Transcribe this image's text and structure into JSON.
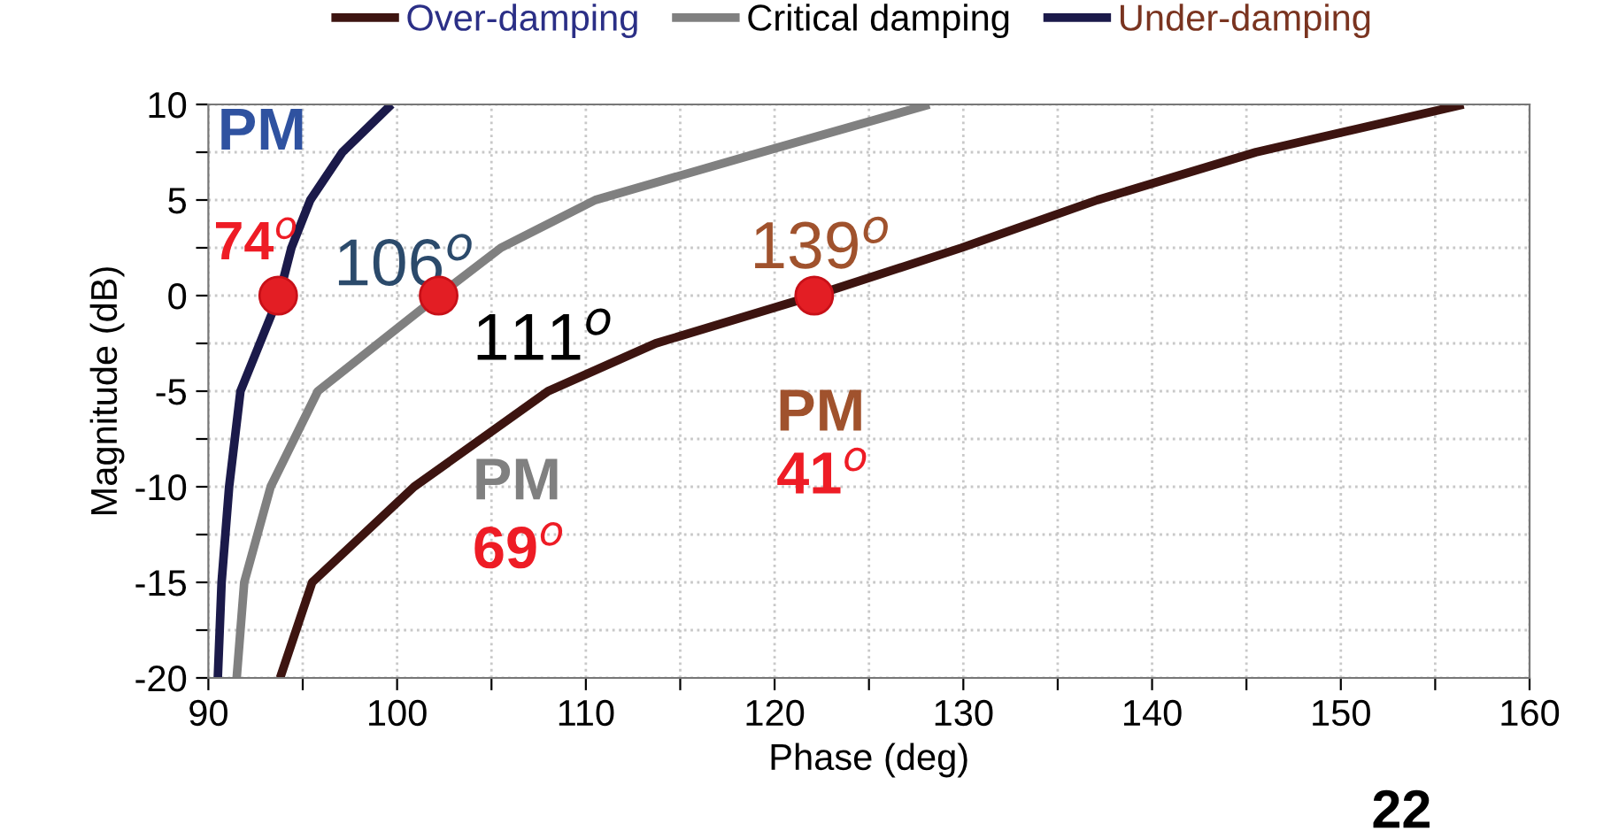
{
  "chart_data": {
    "type": "line",
    "xlabel": "Phase (deg)",
    "ylabel": "Magnitude (dB)",
    "xlim": [
      90,
      160
    ],
    "ylim": [
      -20,
      10
    ],
    "xticks": [
      90,
      {
        "value": 95,
        "label": null
      },
      100,
      {
        "value": 105,
        "label": null
      },
      110,
      {
        "value": 115,
        "label": null
      },
      120,
      {
        "value": 125,
        "label": null
      },
      130,
      {
        "value": 135,
        "label": null
      },
      140,
      {
        "value": 145,
        "label": null
      },
      150,
      {
        "value": 155,
        "label": null
      },
      160
    ],
    "yticks": [
      -20,
      {
        "value": -17.5,
        "label": null
      },
      -15,
      {
        "value": -12.5,
        "label": null
      },
      -10,
      {
        "value": -7.5,
        "label": null
      },
      -5,
      {
        "value": -2.5,
        "label": null
      },
      0,
      {
        "value": 2.5,
        "label": null
      },
      5,
      {
        "value": 7.5,
        "label": null
      },
      10
    ],
    "grid": true,
    "legend": "top",
    "line_style": "solid",
    "series": [
      {
        "name": "Over-damping",
        "color": "#3d1410",
        "x": [
          93.8,
          95.5,
          100.9,
          108.0,
          113.7,
          122.1,
          129.9,
          137.1,
          145.5,
          156.5
        ],
        "values": [
          -20,
          -15,
          -10,
          -5,
          -2.5,
          0,
          2.5,
          5,
          7.5,
          10
        ]
      },
      {
        "name": "Critical damping",
        "color": "#808080",
        "x": [
          91.5,
          91.9,
          93.3,
          95.8,
          99.0,
          102.2,
          105.5,
          110.5,
          119.3,
          128.2
        ],
        "values": [
          -20,
          -15,
          -10,
          -5,
          -2.5,
          0,
          2.5,
          5,
          7.5,
          10
        ]
      },
      {
        "name": "Under-damping",
        "color": "#1b1a4a",
        "x": [
          90.5,
          90.7,
          91.1,
          91.7,
          93.75,
          94.4,
          95.4,
          97.1,
          99.7
        ],
        "values": [
          -20,
          -15,
          -10,
          -5,
          0,
          2.5,
          5,
          7.5,
          10
        ]
      },
      {
        "type": "scatter",
        "color": "#e31e24",
        "marker": "circle",
        "x": [
          93.7,
          102.2,
          122.1
        ],
        "values": [
          0,
          0,
          0
        ]
      }
    ],
    "annotations": [
      "PM",
      "74$^{o}$",
      "106$^{o}$",
      "111$^{o}$",
      "139$^{o}$",
      "PM",
      "41$^{o}$",
      "PM",
      "69$^{o}$",
      "22"
    ]
  }
}
